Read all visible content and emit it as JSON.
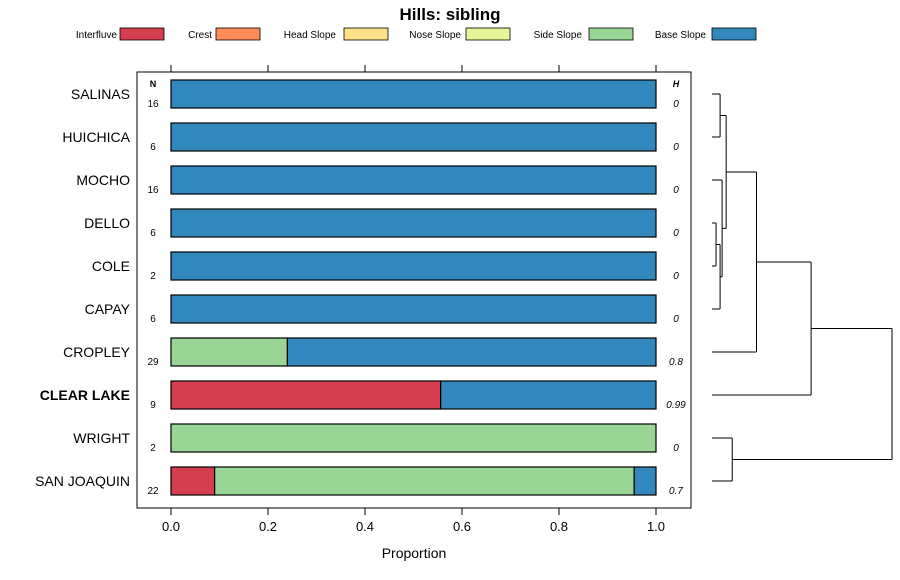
{
  "chart_data": {
    "type": "stacked-bar-horizontal",
    "title": "Hills: sibling",
    "xlabel": "Proportion",
    "ylabel": "",
    "xlim": [
      0,
      1
    ],
    "x_ticks": [
      "0.0",
      "0.2",
      "0.4",
      "0.6",
      "0.8",
      "1.0"
    ],
    "n_header": "N",
    "h_header": "H",
    "legend_position": "top",
    "categories": [
      "Interfluve",
      "Crest",
      "Head Slope",
      "Nose Slope",
      "Side Slope",
      "Base Slope"
    ],
    "colors": {
      "Interfluve": "#d53e4f",
      "Crest": "#fc8d59",
      "Head Slope": "#fee08b",
      "Nose Slope": "#e6f598",
      "Side Slope": "#99d594",
      "Base Slope": "#3288bd"
    },
    "rows": [
      {
        "name": "SALINAS",
        "bold": false,
        "n": "16",
        "h": "0",
        "values": {
          "Interfluve": 0,
          "Crest": 0,
          "Head Slope": 0,
          "Nose Slope": 0,
          "Side Slope": 0,
          "Base Slope": 1
        }
      },
      {
        "name": "HUICHICA",
        "bold": false,
        "n": "6",
        "h": "0",
        "values": {
          "Interfluve": 0,
          "Crest": 0,
          "Head Slope": 0,
          "Nose Slope": 0,
          "Side Slope": 0,
          "Base Slope": 1
        }
      },
      {
        "name": "MOCHO",
        "bold": false,
        "n": "16",
        "h": "0",
        "values": {
          "Interfluve": 0,
          "Crest": 0,
          "Head Slope": 0,
          "Nose Slope": 0,
          "Side Slope": 0,
          "Base Slope": 1
        }
      },
      {
        "name": "DELLO",
        "bold": false,
        "n": "6",
        "h": "0",
        "values": {
          "Interfluve": 0,
          "Crest": 0,
          "Head Slope": 0,
          "Nose Slope": 0,
          "Side Slope": 0,
          "Base Slope": 1
        }
      },
      {
        "name": "COLE",
        "bold": false,
        "n": "2",
        "h": "0",
        "values": {
          "Interfluve": 0,
          "Crest": 0,
          "Head Slope": 0,
          "Nose Slope": 0,
          "Side Slope": 0,
          "Base Slope": 1
        }
      },
      {
        "name": "CAPAY",
        "bold": false,
        "n": "6",
        "h": "0",
        "values": {
          "Interfluve": 0,
          "Crest": 0,
          "Head Slope": 0,
          "Nose Slope": 0,
          "Side Slope": 0,
          "Base Slope": 1
        }
      },
      {
        "name": "CROPLEY",
        "bold": false,
        "n": "29",
        "h": "0.8",
        "values": {
          "Interfluve": 0,
          "Crest": 0,
          "Head Slope": 0,
          "Nose Slope": 0,
          "Side Slope": 0.24,
          "Base Slope": 0.76
        }
      },
      {
        "name": "CLEAR LAKE",
        "bold": true,
        "n": "9",
        "h": "0.99",
        "values": {
          "Interfluve": 0.556,
          "Crest": 0,
          "Head Slope": 0,
          "Nose Slope": 0,
          "Side Slope": 0,
          "Base Slope": 0.444
        }
      },
      {
        "name": "WRIGHT",
        "bold": false,
        "n": "2",
        "h": "0",
        "values": {
          "Interfluve": 0,
          "Crest": 0,
          "Head Slope": 0,
          "Nose Slope": 0,
          "Side Slope": 1,
          "Base Slope": 0
        }
      },
      {
        "name": "SAN JOAQUIN",
        "bold": false,
        "n": "22",
        "h": "0.7",
        "values": {
          "Interfluve": 0.09,
          "Crest": 0,
          "Head Slope": 0,
          "Nose Slope": 0,
          "Side Slope": 0.865,
          "Base Slope": 0.045
        }
      }
    ],
    "dendrogram": {
      "merges": [
        {
          "a": "SALINAS",
          "b": "HUICHICA",
          "height": 0.02
        },
        {
          "a": "DELLO",
          "b": "COLE",
          "height": 0.01
        },
        {
          "a": "L:1",
          "b": "CAPAY",
          "height": 0.02
        },
        {
          "a": "MOCHO",
          "b": "M:2",
          "height": 0.025
        },
        {
          "a": "M:0",
          "b": "M:3",
          "height": 0.035
        },
        {
          "a": "M:4",
          "b": "CROPLEY",
          "height": 0.11
        },
        {
          "a": "M:5",
          "b": "CLEAR LAKE",
          "height": 0.245
        },
        {
          "a": "WRIGHT",
          "b": "SAN JOAQUIN",
          "height": 0.05
        },
        {
          "a": "M:6",
          "b": "M:7",
          "height": 0.445
        }
      ],
      "max_height": 0.445
    }
  }
}
